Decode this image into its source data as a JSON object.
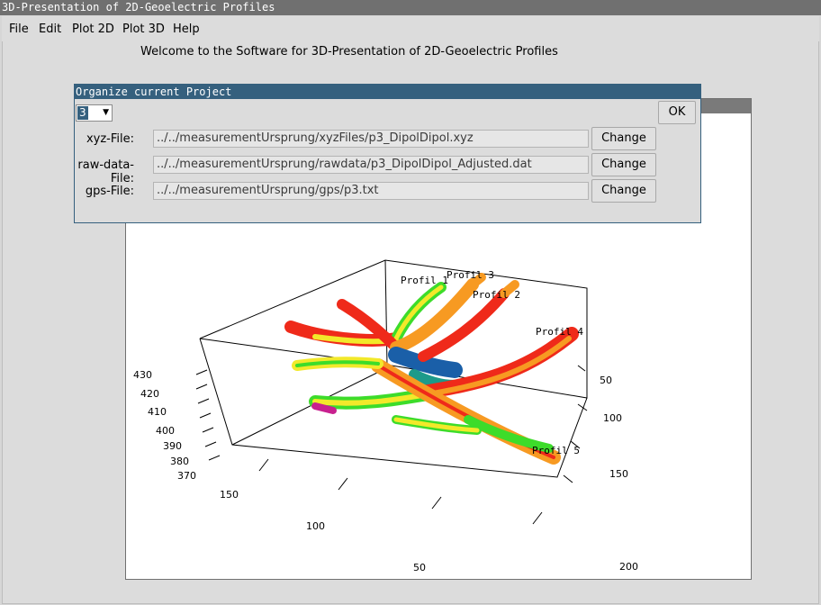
{
  "window": {
    "title": "3D-Presentation of 2D-Geoelectric Profiles"
  },
  "menu": [
    "File",
    "Edit",
    "Plot 2D",
    "Plot 3D",
    "Help"
  ],
  "welcome": "Welcome to the Software for 3D-Presentation of 2D-Geoelectric Profiles",
  "dialog": {
    "title": "Organize current Project",
    "select_value": "3",
    "ok_label": "OK",
    "rows": [
      {
        "label": "xyz-File:",
        "path": "../../measurementUrsprung/xyzFiles/p3_DipolDipol.xyz",
        "button": "Change"
      },
      {
        "label": "raw-data-File:",
        "path": "../../measurementUrsprung/rawdata/p3_DipolDipol_Adjusted.dat",
        "button": "Change"
      },
      {
        "label": "gps-File:",
        "path": "../../measurementUrsprung/gps/p3.txt",
        "button": "Change"
      }
    ]
  },
  "plot": {
    "profile_labels": [
      "Profil 1",
      "Profil 3",
      "Profil 2",
      "Profil 4",
      "Profil 5"
    ],
    "z_ticks": [
      "430",
      "420",
      "410",
      "400",
      "390",
      "380",
      "370"
    ],
    "x_ticks": [
      "150",
      "100",
      "50"
    ],
    "y_ticks": [
      "50",
      "100",
      "150",
      "200"
    ],
    "colors": {
      "red": "#ef2a1a",
      "orange": "#f79a22",
      "yellow": "#f2e92a",
      "green": "#3ddc2a",
      "blue": "#1a5fa8",
      "teal": "#1d9a8a",
      "magenta": "#c8208f"
    }
  }
}
